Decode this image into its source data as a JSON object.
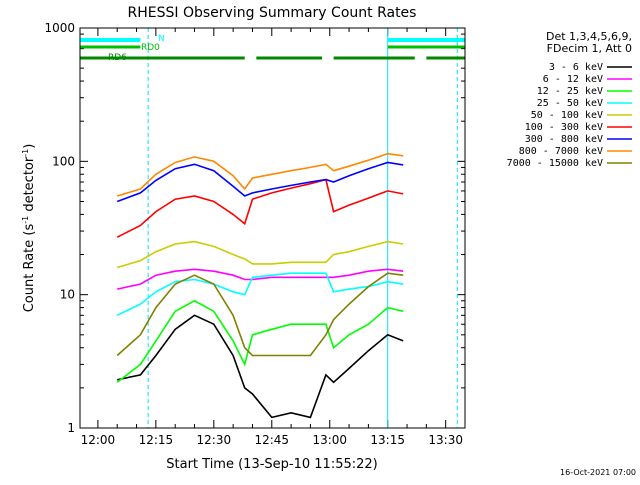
{
  "chart_data": {
    "type": "line",
    "title": "RHESSI Observing Summary Count Rates",
    "xlabel": "Start Time (13-Sep-10 11:55:22)",
    "ylabel_main": "Count Rate (s",
    "ylabel_sup1": "-1",
    "ylabel_mid": " detector",
    "ylabel_sup2": "-1",
    "ylabel_end": ")",
    "ylog": true,
    "ylim": [
      1,
      1000
    ],
    "xlim": [
      "11:55:22",
      "13:35:00"
    ],
    "x_ticks": [
      "12:00",
      "12:15",
      "12:30",
      "12:45",
      "13:00",
      "13:15",
      "13:30"
    ],
    "y_ticks": [
      "1",
      "10",
      "100",
      "1000"
    ],
    "legend_header": [
      "Det 1,3,4,5,6,9,",
      "FDecim 1, Att 0"
    ],
    "footer_timestamp": "16-Oct-2021 07:00",
    "flag_labels": {
      "N": "N",
      "RD0": "RD0",
      "RD6": "RD6"
    },
    "series": [
      {
        "name": "3 - 6 keV",
        "color": "#000000",
        "x": [
          "12:05",
          "12:11",
          "12:15",
          "12:20",
          "12:25",
          "12:30",
          "12:35",
          "12:38",
          "12:40",
          "12:45",
          "12:50",
          "12:55",
          "12:59",
          "13:01",
          "13:05",
          "13:10",
          "13:15",
          "13:19"
        ],
        "values": [
          2.3,
          2.5,
          3.5,
          5.5,
          7,
          6,
          3.5,
          2,
          1.8,
          1.2,
          1.3,
          1.2,
          2.5,
          2.2,
          2.8,
          3.8,
          5,
          4.5
        ]
      },
      {
        "name": "6 - 12 keV",
        "color": "#ff00ff",
        "x": [
          "12:05",
          "12:11",
          "12:15",
          "12:20",
          "12:25",
          "12:30",
          "12:35",
          "12:38",
          "12:40",
          "12:45",
          "12:50",
          "12:55",
          "12:59",
          "13:01",
          "13:05",
          "13:10",
          "13:15",
          "13:19"
        ],
        "values": [
          11,
          12,
          14,
          15,
          15.5,
          15,
          14,
          13,
          13,
          13.5,
          13.5,
          13.5,
          13.5,
          13.5,
          14,
          15,
          15.5,
          15
        ]
      },
      {
        "name": "12 - 25 keV",
        "color": "#00ff00",
        "x": [
          "12:05",
          "12:11",
          "12:15",
          "12:20",
          "12:25",
          "12:30",
          "12:35",
          "12:38",
          "12:40",
          "12:45",
          "12:50",
          "12:55",
          "12:59",
          "13:01",
          "13:05",
          "13:10",
          "13:15",
          "13:19"
        ],
        "values": [
          2.2,
          3,
          4.5,
          7.5,
          9,
          7.5,
          4.5,
          3,
          5,
          5.5,
          6,
          6,
          6,
          4,
          5,
          6,
          8,
          7.5
        ]
      },
      {
        "name": "25 - 50 keV",
        "color": "#00ffff",
        "x": [
          "12:05",
          "12:11",
          "12:15",
          "12:20",
          "12:25",
          "12:30",
          "12:35",
          "12:38",
          "12:40",
          "12:45",
          "12:50",
          "12:55",
          "12:59",
          "13:01",
          "13:05",
          "13:10",
          "13:15",
          "13:19"
        ],
        "values": [
          7,
          8.5,
          10.5,
          12.5,
          13,
          12,
          10.5,
          10,
          13.5,
          14,
          14.5,
          14.5,
          14.5,
          10.5,
          11,
          11.5,
          12.5,
          12
        ]
      },
      {
        "name": "50 - 100 keV",
        "color": "#cccc00",
        "x": [
          "12:05",
          "12:11",
          "12:15",
          "12:20",
          "12:25",
          "12:30",
          "12:35",
          "12:38",
          "12:40",
          "12:45",
          "12:50",
          "12:55",
          "12:59",
          "13:01",
          "13:05",
          "13:10",
          "13:15",
          "13:19"
        ],
        "values": [
          16,
          18,
          21,
          24,
          25,
          23,
          20,
          18.5,
          17,
          17,
          17.5,
          17.5,
          17.5,
          20,
          21,
          23,
          25,
          24
        ]
      },
      {
        "name": "100 - 300 keV",
        "color": "#ff0000",
        "x": [
          "12:05",
          "12:11",
          "12:15",
          "12:20",
          "12:25",
          "12:30",
          "12:35",
          "12:38",
          "12:40",
          "12:45",
          "12:50",
          "12:55",
          "12:59",
          "13:01",
          "13:05",
          "13:10",
          "13:15",
          "13:19"
        ],
        "values": [
          27,
          33,
          42,
          52,
          55,
          50,
          40,
          34,
          52,
          58,
          63,
          68,
          73,
          42,
          47,
          53,
          60,
          57
        ]
      },
      {
        "name": "300 - 800 keV",
        "color": "#0000ff",
        "x": [
          "12:05",
          "12:11",
          "12:15",
          "12:20",
          "12:25",
          "12:30",
          "12:35",
          "12:38",
          "12:40",
          "12:45",
          "12:50",
          "12:55",
          "12:59",
          "13:01",
          "13:05",
          "13:10",
          "13:15",
          "13:19"
        ],
        "values": [
          50,
          58,
          72,
          88,
          95,
          85,
          65,
          55,
          58,
          62,
          66,
          70,
          73,
          70,
          78,
          88,
          98,
          94
        ]
      },
      {
        "name": "800 - 7000 keV",
        "color": "#ff8800",
        "x": [
          "12:05",
          "12:11",
          "12:15",
          "12:20",
          "12:25",
          "12:30",
          "12:35",
          "12:38",
          "12:40",
          "12:45",
          "12:50",
          "12:55",
          "12:59",
          "13:01",
          "13:05",
          "13:10",
          "13:15",
          "13:19"
        ],
        "values": [
          55,
          62,
          80,
          98,
          108,
          100,
          78,
          62,
          75,
          80,
          85,
          90,
          95,
          85,
          92,
          102,
          114,
          110
        ]
      },
      {
        "name": "7000 - 15000 keV",
        "color": "#808000",
        "x": [
          "12:05",
          "12:11",
          "12:15",
          "12:20",
          "12:25",
          "12:30",
          "12:35",
          "12:38",
          "12:40",
          "12:45",
          "12:50",
          "12:55",
          "12:59",
          "13:01",
          "13:05",
          "13:10",
          "13:15",
          "13:19"
        ],
        "values": [
          3.5,
          5,
          8,
          12,
          14,
          12,
          7,
          4,
          3.5,
          3.5,
          3.5,
          3.5,
          5,
          6.5,
          8.5,
          11.5,
          14.5,
          14
        ]
      }
    ],
    "flags": {
      "N": [
        [
          "11:55:22",
          "12:11"
        ],
        [
          "13:15",
          "13:35"
        ]
      ],
      "RD0": [
        [
          "11:55:22",
          "12:11"
        ],
        [
          "13:15",
          "13:35"
        ]
      ],
      "RD6": [
        [
          "11:55:22",
          "12:38"
        ],
        [
          "12:41",
          "12:58"
        ],
        [
          "13:01",
          "13:22"
        ],
        [
          "13:25",
          "13:35"
        ]
      ]
    },
    "vlines_cyan_solid": [
      "11:55:22",
      "13:15"
    ],
    "vlines_cyan_dashed": [
      "12:13",
      "13:33"
    ]
  }
}
